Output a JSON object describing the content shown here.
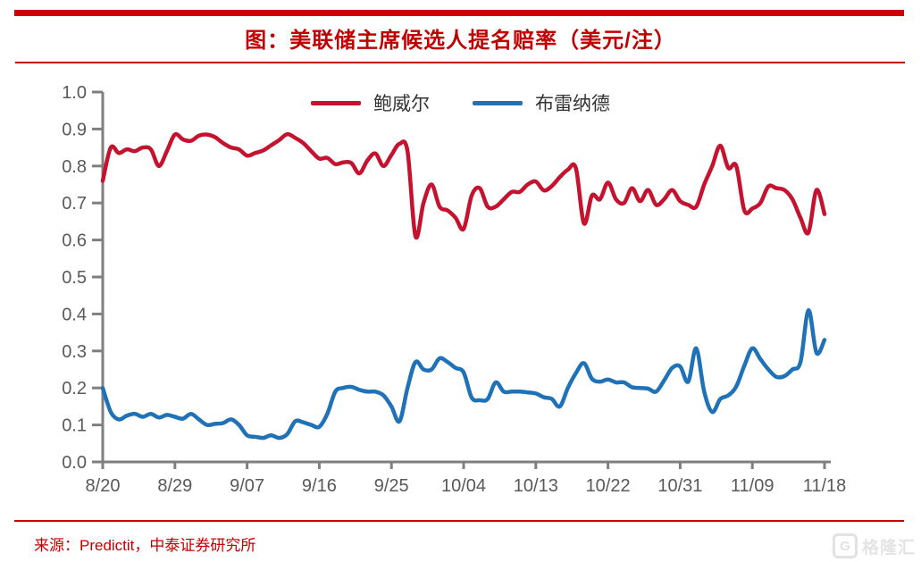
{
  "header": {
    "title": "图：美联储主席候选人提名赔率（美元/注）"
  },
  "colors": {
    "accent_red": "#c00000",
    "bar_red": "#cc0000",
    "powell_red": "#c4122f",
    "brainard_blue": "#1f72b8",
    "axis_gray": "#7f7f7f",
    "label_gray": "#595959"
  },
  "chart_data": {
    "type": "line",
    "title": "图：美联储主席候选人提名赔率（美元/注）",
    "xlabel": "",
    "ylabel": "",
    "ylim": [
      0.0,
      1.0
    ],
    "grid": false,
    "legend_position": "top-center",
    "x_tick_labels": [
      "8/20",
      "8/29",
      "9/07",
      "9/16",
      "9/25",
      "10/04",
      "10/13",
      "10/22",
      "10/31",
      "11/09",
      "11/18"
    ],
    "y_tick_labels": [
      "0.0",
      "0.1",
      "0.2",
      "0.3",
      "0.4",
      "0.5",
      "0.6",
      "0.7",
      "0.8",
      "0.9",
      "1.0"
    ],
    "x_note": "daily points from 8/20 to 11/18",
    "series": [
      {
        "name": "鲍威尔",
        "color": "#c4122f",
        "values": [
          0.76,
          0.85,
          0.835,
          0.845,
          0.84,
          0.85,
          0.845,
          0.8,
          0.84,
          0.885,
          0.872,
          0.868,
          0.882,
          0.885,
          0.878,
          0.862,
          0.85,
          0.845,
          0.828,
          0.835,
          0.842,
          0.856,
          0.87,
          0.886,
          0.876,
          0.862,
          0.84,
          0.82,
          0.822,
          0.805,
          0.81,
          0.808,
          0.78,
          0.815,
          0.834,
          0.8,
          0.83,
          0.86,
          0.84,
          0.61,
          0.7,
          0.75,
          0.69,
          0.68,
          0.66,
          0.63,
          0.72,
          0.74,
          0.69,
          0.69,
          0.71,
          0.73,
          0.73,
          0.75,
          0.758,
          0.734,
          0.746,
          0.77,
          0.79,
          0.794,
          0.645,
          0.72,
          0.71,
          0.755,
          0.71,
          0.7,
          0.74,
          0.705,
          0.735,
          0.695,
          0.71,
          0.735,
          0.705,
          0.695,
          0.69,
          0.75,
          0.8,
          0.855,
          0.795,
          0.8,
          0.68,
          0.685,
          0.7,
          0.745,
          0.74,
          0.735,
          0.71,
          0.66,
          0.62,
          0.735,
          0.67
        ]
      },
      {
        "name": "布雷纳德",
        "color": "#1f72b8",
        "values": [
          0.2,
          0.135,
          0.115,
          0.125,
          0.13,
          0.122,
          0.13,
          0.12,
          0.127,
          0.122,
          0.117,
          0.13,
          0.115,
          0.1,
          0.103,
          0.105,
          0.115,
          0.1,
          0.072,
          0.068,
          0.065,
          0.072,
          0.065,
          0.075,
          0.11,
          0.107,
          0.1,
          0.095,
          0.13,
          0.19,
          0.2,
          0.203,
          0.195,
          0.19,
          0.19,
          0.18,
          0.15,
          0.11,
          0.2,
          0.27,
          0.25,
          0.25,
          0.28,
          0.27,
          0.254,
          0.242,
          0.174,
          0.167,
          0.17,
          0.215,
          0.19,
          0.19,
          0.19,
          0.188,
          0.185,
          0.175,
          0.17,
          0.15,
          0.2,
          0.24,
          0.267,
          0.225,
          0.217,
          0.223,
          0.215,
          0.215,
          0.202,
          0.2,
          0.198,
          0.19,
          0.22,
          0.254,
          0.258,
          0.217,
          0.307,
          0.19,
          0.135,
          0.17,
          0.18,
          0.204,
          0.26,
          0.307,
          0.278,
          0.25,
          0.23,
          0.232,
          0.25,
          0.27,
          0.41,
          0.295,
          0.33
        ]
      }
    ]
  },
  "footer": {
    "source": "来源：Predictit，中泰证券研究所",
    "logo_g": "G",
    "logo_text": "格隆汇"
  }
}
